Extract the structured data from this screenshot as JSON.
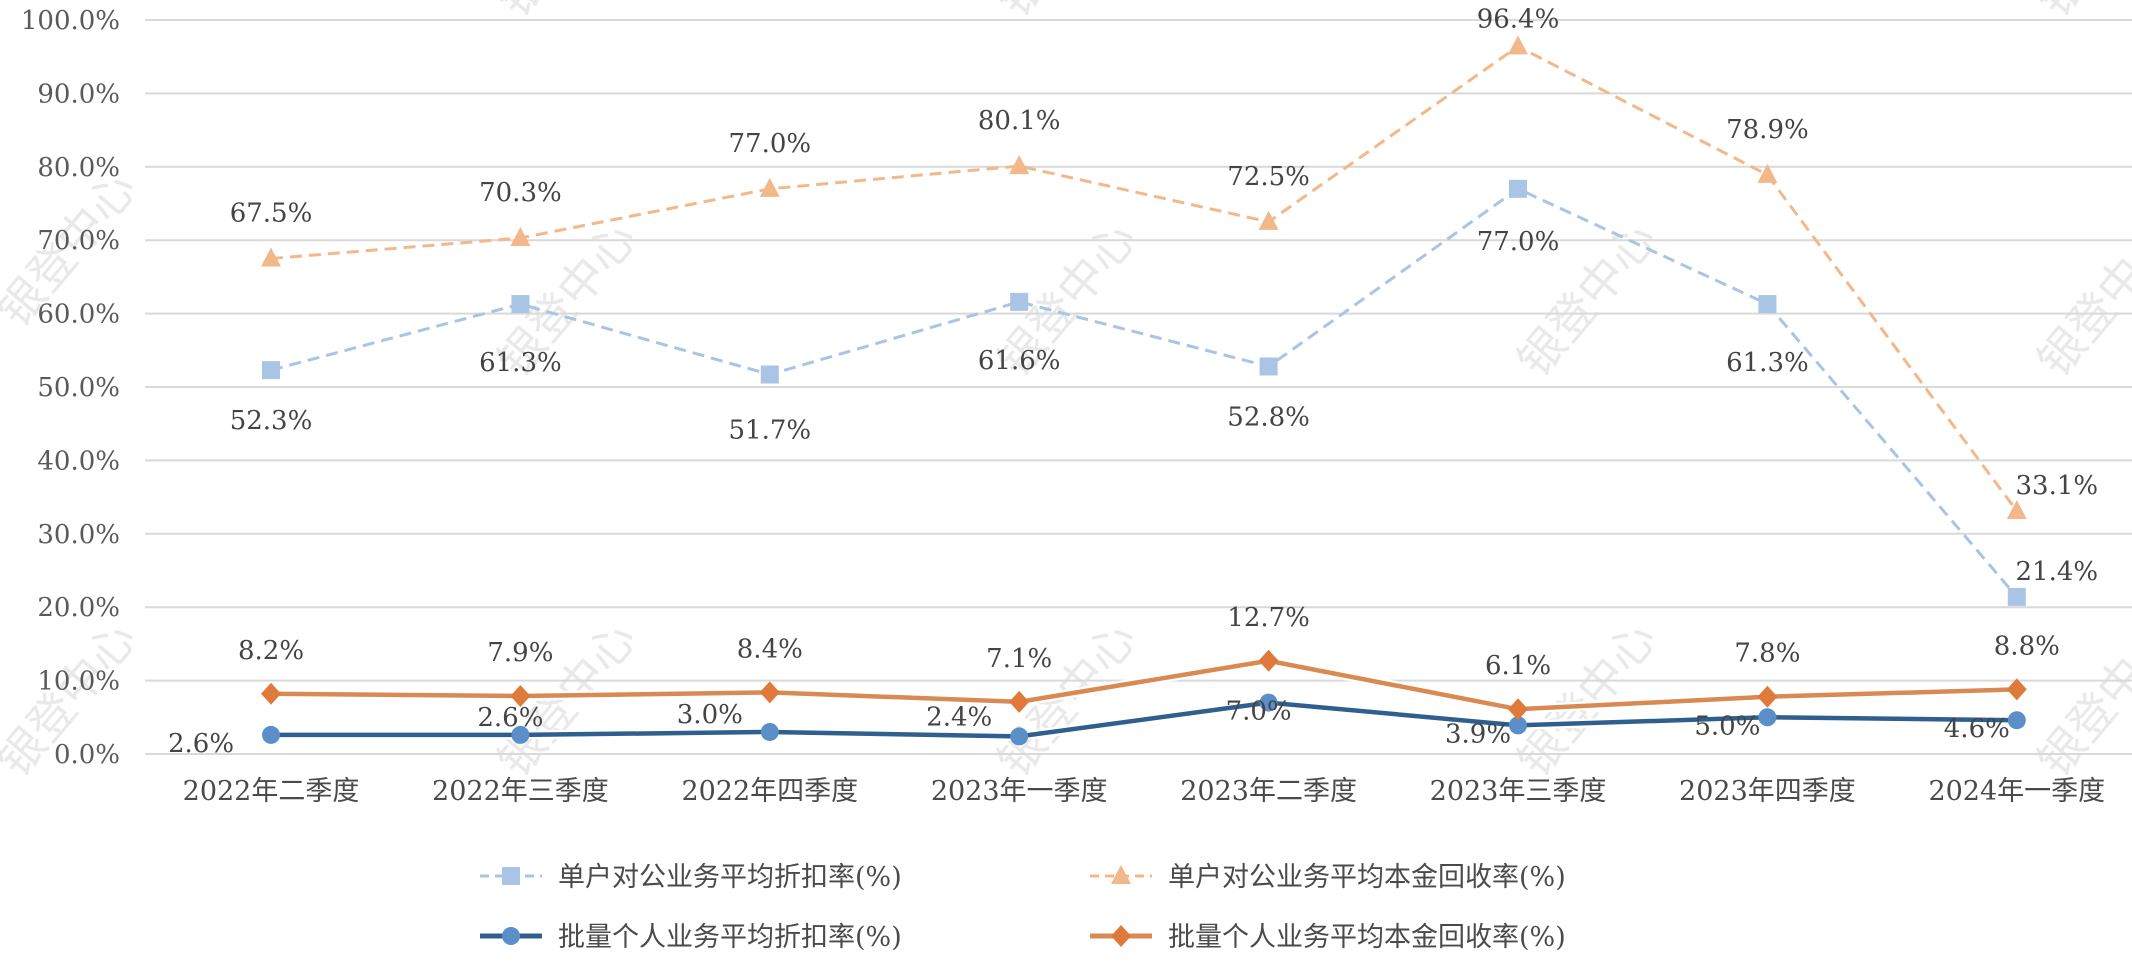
{
  "chart_data": {
    "type": "line",
    "title": "",
    "xlabel": "",
    "ylabel": "",
    "ylim": [
      0,
      100
    ],
    "yticks": [
      "0.0%",
      "10.0%",
      "20.0%",
      "30.0%",
      "40.0%",
      "50.0%",
      "60.0%",
      "70.0%",
      "80.0%",
      "90.0%",
      "100.0%"
    ],
    "grid": true,
    "legend_position": "bottom",
    "categories": [
      "2022年二季度",
      "2022年三季度",
      "2022年四季度",
      "2023年一季度",
      "2023年二季度",
      "2023年三季度",
      "2023年四季度",
      "2024年一季度"
    ],
    "series": [
      {
        "name": "单户对公业务平均折扣率(%)",
        "values": [
          52.3,
          61.3,
          51.7,
          61.6,
          52.8,
          77.0,
          61.3,
          21.4
        ],
        "labels": [
          "52.3%",
          "61.3%",
          "51.7%",
          "61.6%",
          "52.8%",
          "77.0%",
          "61.3%",
          "21.4%"
        ],
        "color": "#a9c4e4",
        "line_style": "dashed",
        "marker": "square"
      },
      {
        "name": "单户对公业务平均本金回收率(%)",
        "values": [
          67.5,
          70.3,
          77.0,
          80.1,
          72.5,
          96.4,
          78.9,
          33.1
        ],
        "labels": [
          "67.5%",
          "70.3%",
          "77.0%",
          "80.1%",
          "72.5%",
          "96.4%",
          "78.9%",
          "33.1%"
        ],
        "color": "#f2b88a",
        "line_style": "dashed",
        "marker": "triangle"
      },
      {
        "name": "批量个人业务平均折扣率(%)",
        "values": [
          2.6,
          2.6,
          3.0,
          2.4,
          7.0,
          3.9,
          5.0,
          4.6
        ],
        "labels": [
          "2.6%",
          "2.6%",
          "3.0%",
          "2.4%",
          "7.0%",
          "3.9%",
          "5.0%",
          "4.6%"
        ],
        "color": "#2f5f8f",
        "marker_color": "#5b8fc9",
        "line_style": "solid",
        "marker": "circle"
      },
      {
        "name": "批量个人业务平均本金回收率(%)",
        "values": [
          8.2,
          7.9,
          8.4,
          7.1,
          12.7,
          6.1,
          7.8,
          8.8
        ],
        "labels": [
          "8.2%",
          "7.9%",
          "8.4%",
          "7.1%",
          "12.7%",
          "6.1%",
          "7.8%",
          "8.8%"
        ],
        "color": "#d98a52",
        "marker_color": "#e07a3a",
        "line_style": "solid",
        "marker": "diamond"
      }
    ],
    "annotations": {
      "watermark": "银登中心"
    }
  }
}
